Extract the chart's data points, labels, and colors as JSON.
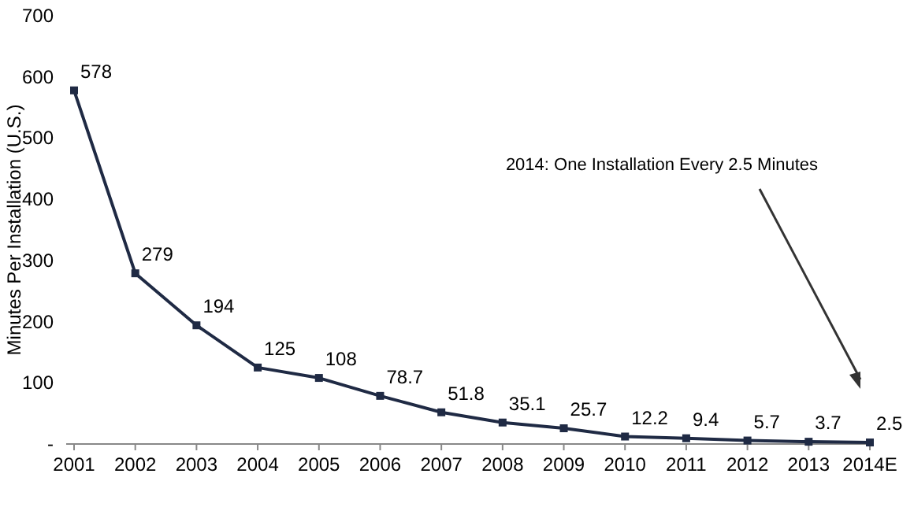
{
  "chart_data": {
    "type": "line",
    "ylabel": "Minutes Per Installation (U.S.)",
    "categories": [
      "2001",
      "2002",
      "2003",
      "2004",
      "2005",
      "2006",
      "2007",
      "2008",
      "2009",
      "2010",
      "2011",
      "2012",
      "2013",
      "2014E"
    ],
    "series": [
      {
        "color": "#1f2a44",
        "values": [
          578,
          279,
          194,
          125,
          108,
          78.7,
          51.8,
          35.1,
          25.7,
          12.2,
          9.4,
          5.7,
          3.7,
          2.5
        ]
      }
    ],
    "ylim": [
      0,
      700
    ],
    "yticks": [
      {
        "value": 0,
        "label": "-"
      },
      100,
      200,
      300,
      400,
      500,
      600,
      700
    ],
    "data_labels": true,
    "marker": "square",
    "line_style": "solid",
    "annotations": [
      "2014: One Installation Every 2.5 Minutes"
    ]
  }
}
